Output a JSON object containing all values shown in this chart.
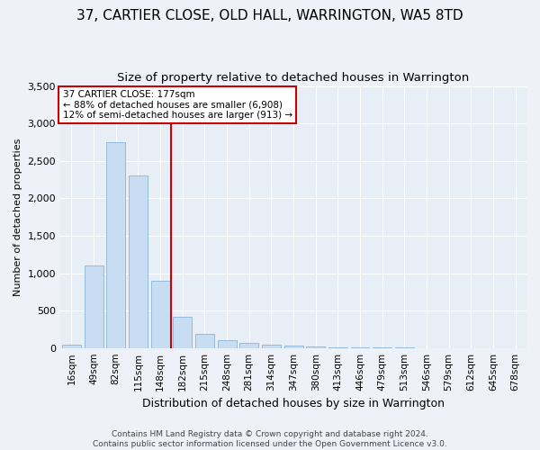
{
  "title": "37, CARTIER CLOSE, OLD HALL, WARRINGTON, WA5 8TD",
  "subtitle": "Size of property relative to detached houses in Warrington",
  "xlabel": "Distribution of detached houses by size in Warrington",
  "ylabel": "Number of detached properties",
  "categories": [
    "16sqm",
    "49sqm",
    "82sqm",
    "115sqm",
    "148sqm",
    "182sqm",
    "215sqm",
    "248sqm",
    "281sqm",
    "314sqm",
    "347sqm",
    "380sqm",
    "413sqm",
    "446sqm",
    "479sqm",
    "513sqm",
    "546sqm",
    "579sqm",
    "612sqm",
    "645sqm",
    "678sqm"
  ],
  "values": [
    50,
    1100,
    2750,
    2300,
    900,
    420,
    185,
    110,
    70,
    50,
    30,
    18,
    10,
    7,
    5,
    3,
    2,
    1,
    1,
    0,
    0
  ],
  "bar_color": "#c9ddf2",
  "bar_edge_color": "#8ab4d8",
  "vline_x_index": 5,
  "vline_color": "#cc0000",
  "annotation_text": "37 CARTIER CLOSE: 177sqm\n← 88% of detached houses are smaller (6,908)\n12% of semi-detached houses are larger (913) →",
  "annotation_box_color": "#cc0000",
  "ylim": [
    0,
    3500
  ],
  "yticks": [
    0,
    500,
    1000,
    1500,
    2000,
    2500,
    3000,
    3500
  ],
  "footnote": "Contains HM Land Registry data © Crown copyright and database right 2024.\nContains public sector information licensed under the Open Government Licence v3.0.",
  "background_color": "#eef2f8",
  "plot_background": "#e8eef6",
  "grid_color": "#ffffff",
  "title_fontsize": 11,
  "subtitle_fontsize": 9.5,
  "ylabel_fontsize": 8,
  "xlabel_fontsize": 9,
  "tick_fontsize": 7.5,
  "annotation_fontsize": 7.5,
  "footnote_fontsize": 6.5
}
